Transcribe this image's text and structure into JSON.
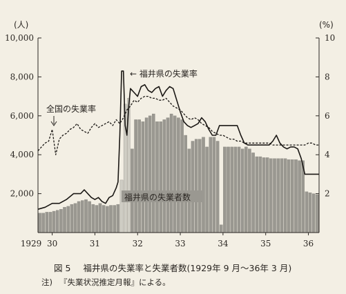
{
  "chart_data": {
    "type": "bar+line",
    "left_axis": {
      "unit": "(人)",
      "ticks": [
        2000,
        4000,
        6000,
        8000,
        10000
      ],
      "tick_labels": [
        "2,000",
        "4,000",
        "6,000",
        "8,000",
        "10,000"
      ],
      "range": [
        0,
        10000
      ]
    },
    "right_axis": {
      "unit": "(%)",
      "ticks": [
        2,
        4,
        6,
        8,
        10
      ],
      "tick_labels": [
        "2",
        "4",
        "6",
        "8",
        "10"
      ],
      "range": [
        0,
        10
      ]
    },
    "x_axis": {
      "ticks": [
        1929,
        1930,
        1931,
        1932,
        1933,
        1934,
        1935,
        1936
      ],
      "tick_labels": [
        "1929",
        "30",
        "31",
        "32",
        "33",
        "34",
        "35",
        "36"
      ],
      "start": 1929.667,
      "end": 1936.25
    },
    "series": [
      {
        "name": "福井県の失業者数",
        "kind": "bar",
        "axis": "left",
        "t": [
          1929.667,
          1929.75,
          1929.833,
          1929.917,
          1930.0,
          1930.083,
          1930.167,
          1930.25,
          1930.333,
          1930.417,
          1930.5,
          1930.583,
          1930.667,
          1930.75,
          1930.833,
          1930.917,
          1931.0,
          1931.083,
          1931.167,
          1931.25,
          1931.333,
          1931.417,
          1931.5,
          1931.583,
          1931.667,
          1931.75,
          1931.833,
          1931.917,
          1932.0,
          1932.083,
          1932.167,
          1932.25,
          1932.333,
          1932.417,
          1932.5,
          1932.583,
          1932.667,
          1932.75,
          1932.833,
          1932.917,
          1933.0,
          1933.083,
          1933.167,
          1933.25,
          1933.333,
          1933.417,
          1933.5,
          1933.583,
          1933.667,
          1933.75,
          1933.833,
          1933.917,
          1934.0,
          1934.083,
          1934.167,
          1934.25,
          1934.333,
          1934.417,
          1934.5,
          1934.583,
          1934.667,
          1934.75,
          1934.833,
          1934.917,
          1935.0,
          1935.083,
          1935.167,
          1935.25,
          1935.333,
          1935.417,
          1935.5,
          1935.583,
          1935.667,
          1935.75,
          1935.833,
          1935.917,
          1936.0,
          1936.083,
          1936.167
        ],
        "values": [
          1000,
          1000,
          1050,
          1050,
          1100,
          1150,
          1200,
          1300,
          1350,
          1450,
          1500,
          1600,
          1650,
          1700,
          1600,
          1450,
          1400,
          1500,
          1400,
          1350,
          1400,
          1400,
          1450,
          2700,
          6600,
          6900,
          4300,
          5800,
          5800,
          5700,
          5900,
          6000,
          6100,
          5700,
          5700,
          5800,
          5900,
          6100,
          6000,
          5900,
          5800,
          5000,
          4300,
          4700,
          4800,
          4800,
          4900,
          4400,
          4900,
          4900,
          4700,
          400,
          4400,
          4400,
          4400,
          4400,
          4400,
          4300,
          4400,
          4300,
          4100,
          3900,
          3900,
          3850,
          3850,
          3800,
          3800,
          3800,
          3800,
          3800,
          3750,
          3750,
          3750,
          3700,
          3700,
          2100,
          2050,
          2000,
          1950
        ]
      },
      {
        "name": "福井県の失業率",
        "kind": "line",
        "axis": "right",
        "t": [
          1929.667,
          1929.833,
          1930.0,
          1930.167,
          1930.25,
          1930.333,
          1930.5,
          1930.667,
          1930.75,
          1930.833,
          1930.917,
          1931.0,
          1931.083,
          1931.167,
          1931.25,
          1931.333,
          1931.417,
          1931.5,
          1931.542,
          1931.583,
          1931.625,
          1931.667,
          1931.708,
          1931.75,
          1931.792,
          1931.833,
          1931.917,
          1932.0,
          1932.083,
          1932.167,
          1932.25,
          1932.333,
          1932.417,
          1932.5,
          1932.583,
          1932.667,
          1932.75,
          1932.833,
          1932.917,
          1933.0,
          1933.083,
          1933.167,
          1933.25,
          1933.333,
          1933.417,
          1933.5,
          1933.583,
          1933.667,
          1933.75,
          1933.833,
          1933.917,
          1934.0,
          1934.083,
          1934.167,
          1934.25,
          1934.333,
          1934.417,
          1934.5,
          1934.583,
          1934.667,
          1934.75,
          1934.833,
          1934.917,
          1935.0,
          1935.083,
          1935.167,
          1935.25,
          1935.333,
          1935.417,
          1935.5,
          1935.583,
          1935.667,
          1935.75,
          1935.833,
          1935.917,
          1936.0,
          1936.083,
          1936.167,
          1936.25
        ],
        "values": [
          1.2,
          1.3,
          1.5,
          1.5,
          1.6,
          1.7,
          2.0,
          2.0,
          2.2,
          2.0,
          1.8,
          1.7,
          1.8,
          1.6,
          1.5,
          1.8,
          1.9,
          2.3,
          2.6,
          5.0,
          8.3,
          8.3,
          5.5,
          5.0,
          6.5,
          7.4,
          7.2,
          7.0,
          7.5,
          7.6,
          7.3,
          7.2,
          7.4,
          7.5,
          7.0,
          7.3,
          7.5,
          7.4,
          6.8,
          6.2,
          5.7,
          5.5,
          5.4,
          5.5,
          5.6,
          5.9,
          5.7,
          5.3,
          5.0,
          5.0,
          5.5,
          5.5,
          5.5,
          5.5,
          5.5,
          5.5,
          5.0,
          4.6,
          4.5,
          4.5,
          4.5,
          4.5,
          4.5,
          4.5,
          4.5,
          4.7,
          5.0,
          4.6,
          4.4,
          4.3,
          4.4,
          4.4,
          4.3,
          3.8,
          3.0,
          3.0,
          3.0,
          3.0,
          3.0
        ]
      },
      {
        "name": "全国の失業率",
        "kind": "line-dashed",
        "axis": "right",
        "t": [
          1929.667,
          1929.75,
          1929.833,
          1929.917,
          1930.0,
          1930.083,
          1930.167,
          1930.25,
          1930.333,
          1930.417,
          1930.5,
          1930.583,
          1930.667,
          1930.75,
          1930.833,
          1930.917,
          1931.0,
          1931.083,
          1931.167,
          1931.25,
          1931.333,
          1931.417,
          1931.5,
          1931.583,
          1931.667,
          1931.75,
          1931.833,
          1931.917,
          1932.0,
          1932.083,
          1932.167,
          1932.25,
          1932.333,
          1932.417,
          1932.5,
          1932.583,
          1932.667,
          1932.75,
          1932.833,
          1932.917,
          1933.0,
          1933.083,
          1933.167,
          1933.25,
          1933.333,
          1933.417,
          1933.5,
          1933.583,
          1933.667,
          1933.75,
          1933.833,
          1933.917,
          1934.0,
          1934.083,
          1934.167,
          1934.25,
          1934.333,
          1934.417,
          1934.5,
          1934.583,
          1934.667,
          1934.75,
          1934.833,
          1934.917,
          1935.0,
          1935.083,
          1935.167,
          1935.25,
          1935.333,
          1935.417,
          1935.5,
          1935.583,
          1935.667,
          1935.75,
          1935.833,
          1935.917,
          1936.0,
          1936.083,
          1936.167,
          1936.25
        ],
        "values": [
          4.2,
          4.4,
          4.6,
          4.7,
          5.3,
          4.0,
          4.8,
          5.0,
          5.1,
          5.3,
          5.4,
          5.6,
          5.3,
          5.2,
          5.1,
          5.4,
          5.6,
          5.4,
          5.5,
          5.6,
          5.7,
          5.5,
          5.8,
          5.6,
          5.9,
          6.3,
          6.5,
          6.8,
          6.7,
          6.9,
          7.0,
          7.0,
          6.9,
          6.9,
          6.8,
          6.8,
          6.9,
          6.7,
          6.5,
          6.4,
          6.3,
          6.1,
          5.9,
          5.8,
          5.9,
          5.8,
          5.6,
          5.5,
          5.4,
          5.2,
          5.1,
          5.0,
          5.0,
          4.9,
          4.8,
          4.8,
          4.7,
          4.7,
          4.6,
          4.6,
          4.6,
          4.6,
          4.6,
          4.6,
          4.6,
          4.6,
          4.5,
          4.5,
          4.5,
          4.5,
          4.5,
          4.5,
          4.5,
          4.5,
          4.5,
          4.5,
          4.6,
          4.6,
          4.5,
          4.5
        ]
      }
    ],
    "annotations": [
      {
        "text": "福井県の失業率",
        "series": "福井県の失業率"
      },
      {
        "text": "全国の失業率",
        "series": "全国の失業率"
      },
      {
        "text": "福井県の失業者数",
        "series": "福井県の失業者数"
      }
    ],
    "grid": false,
    "colors": {
      "bar": "#9a9891",
      "bar_light": "#cfcdc4",
      "line": "#1a1714",
      "background": "#f3efe4"
    }
  },
  "caption": {
    "figure_no": "図 5",
    "title": "福井県の失業率と失業者数(1929年 9 月〜36年 3 月)"
  },
  "note": {
    "label": "注)",
    "text": "『失業状況推定月報』による。"
  }
}
